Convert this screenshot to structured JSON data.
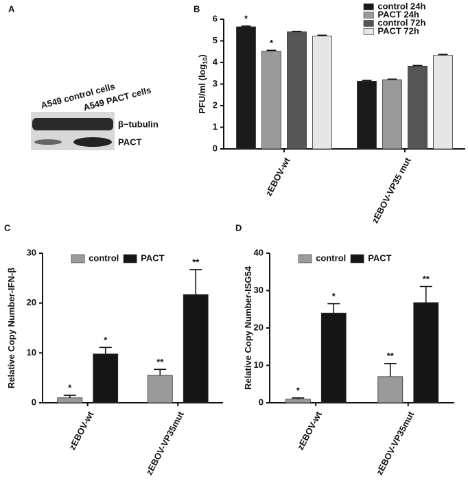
{
  "panel_a": {
    "panel": "A",
    "lane_labels": [
      "A549 control cells",
      "A549 PACT cells"
    ],
    "band_labels": [
      "β−tubulin",
      "PACT"
    ]
  },
  "chart_data": [
    {
      "type": "bar",
      "panel": "B",
      "ylabel": [
        "PFU/ml (log",
        "10",
        ")"
      ],
      "categories": [
        "zEBOV-wt",
        "zEBOV-VP35 mut"
      ],
      "series": [
        {
          "name": "control 24h",
          "color": "#1a1a1a",
          "values": [
            5.65,
            3.13
          ],
          "errors": [
            0.03,
            0.04
          ],
          "labels": [
            "*",
            null
          ]
        },
        {
          "name": "PACT 24h",
          "color": "#9a9a9a",
          "values": [
            4.52,
            3.2
          ],
          "errors": [
            0.04,
            0.03
          ],
          "labels": [
            "*",
            null
          ]
        },
        {
          "name": "control 72h",
          "color": "#555555",
          "values": [
            5.42,
            3.83
          ],
          "errors": [
            0.02,
            0.03
          ],
          "labels": [
            null,
            null
          ]
        },
        {
          "name": "PACT 72h",
          "color": "#e6e6e6",
          "values": [
            5.22,
            4.33
          ],
          "errors": [
            0.04,
            0.04
          ],
          "labels": [
            null,
            null
          ]
        }
      ],
      "ylim": [
        0,
        6
      ],
      "yticks": [
        0,
        1,
        2,
        3,
        4,
        5,
        6
      ],
      "legend": "top-right"
    },
    {
      "type": "bar",
      "panel": "C",
      "ylabel": [
        "Relative Copy Number-IFN-β"
      ],
      "categories": [
        "zEBOV-wt",
        "zEBOV-VP35mut"
      ],
      "series": [
        {
          "name": "control",
          "color": "#9a9a9a",
          "values": [
            1.0,
            5.5
          ],
          "errors": [
            0.5,
            1.2
          ],
          "labels": [
            "*",
            "**"
          ]
        },
        {
          "name": "PACT",
          "color": "#151515",
          "values": [
            9.8,
            21.7
          ],
          "errors": [
            1.3,
            5.0
          ],
          "labels": [
            "*",
            "**"
          ]
        }
      ],
      "ylim": [
        0,
        30
      ],
      "yticks": [
        0,
        10,
        20,
        30
      ],
      "legend": "top"
    },
    {
      "type": "bar",
      "panel": "D",
      "ylabel": [
        "Relative Copy Number-ISG54"
      ],
      "categories": [
        "zEBOV-wt",
        "zEBOV-VP35mut"
      ],
      "series": [
        {
          "name": "control",
          "color": "#9a9a9a",
          "values": [
            1.0,
            7.0
          ],
          "errors": [
            0.3,
            3.5
          ],
          "labels": [
            "*",
            "**"
          ]
        },
        {
          "name": "PACT",
          "color": "#151515",
          "values": [
            24.0,
            26.8
          ],
          "errors": [
            2.5,
            4.3
          ],
          "labels": [
            "*",
            "**"
          ]
        }
      ],
      "ylim": [
        0,
        40
      ],
      "yticks": [
        0,
        10,
        20,
        30,
        40
      ],
      "legend": "top"
    }
  ]
}
